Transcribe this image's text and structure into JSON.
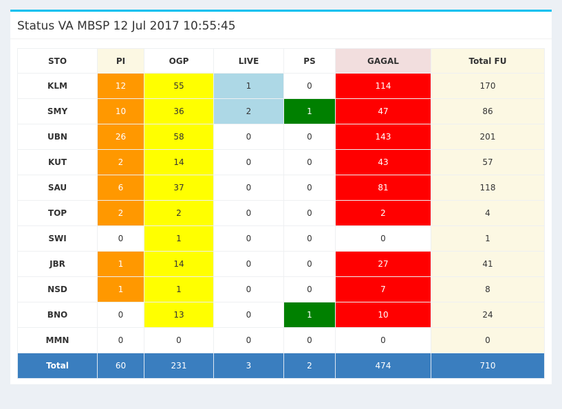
{
  "title": "Status VA MBSP 12 Jul 2017 10:55:45",
  "headers": [
    "STO",
    "PI",
    "OGP",
    "LIVE",
    "PS",
    "GAGAL",
    "Total FU"
  ],
  "colors": {
    "orange": "#ff9800",
    "yellow": "#ffff00",
    "blue": "#add8e6",
    "green": "#008000",
    "red": "#ff0000",
    "total_row": "#3a7ebf",
    "accent_border": "#00c0ef"
  },
  "rows": [
    {
      "sto": "KLM",
      "pi": "12",
      "ogp": "55",
      "live": "1",
      "ps": "0",
      "gagal": "114",
      "total_fu": "170"
    },
    {
      "sto": "SMY",
      "pi": "10",
      "ogp": "36",
      "live": "2",
      "ps": "1",
      "gagal": "47",
      "total_fu": "86"
    },
    {
      "sto": "UBN",
      "pi": "26",
      "ogp": "58",
      "live": "0",
      "ps": "0",
      "gagal": "143",
      "total_fu": "201"
    },
    {
      "sto": "KUT",
      "pi": "2",
      "ogp": "14",
      "live": "0",
      "ps": "0",
      "gagal": "43",
      "total_fu": "57"
    },
    {
      "sto": "SAU",
      "pi": "6",
      "ogp": "37",
      "live": "0",
      "ps": "0",
      "gagal": "81",
      "total_fu": "118"
    },
    {
      "sto": "TOP",
      "pi": "2",
      "ogp": "2",
      "live": "0",
      "ps": "0",
      "gagal": "2",
      "total_fu": "4"
    },
    {
      "sto": "SWI",
      "pi": "0",
      "ogp": "1",
      "live": "0",
      "ps": "0",
      "gagal": "0",
      "total_fu": "1"
    },
    {
      "sto": "JBR",
      "pi": "1",
      "ogp": "14",
      "live": "0",
      "ps": "0",
      "gagal": "27",
      "total_fu": "41"
    },
    {
      "sto": "NSD",
      "pi": "1",
      "ogp": "1",
      "live": "0",
      "ps": "0",
      "gagal": "7",
      "total_fu": "8"
    },
    {
      "sto": "BNO",
      "pi": "0",
      "ogp": "13",
      "live": "0",
      "ps": "1",
      "gagal": "10",
      "total_fu": "24"
    },
    {
      "sto": "MMN",
      "pi": "0",
      "ogp": "0",
      "live": "0",
      "ps": "0",
      "gagal": "0",
      "total_fu": "0"
    }
  ],
  "total": {
    "label": "Total",
    "pi": "60",
    "ogp": "231",
    "live": "3",
    "ps": "2",
    "gagal": "474",
    "total_fu": "710"
  }
}
